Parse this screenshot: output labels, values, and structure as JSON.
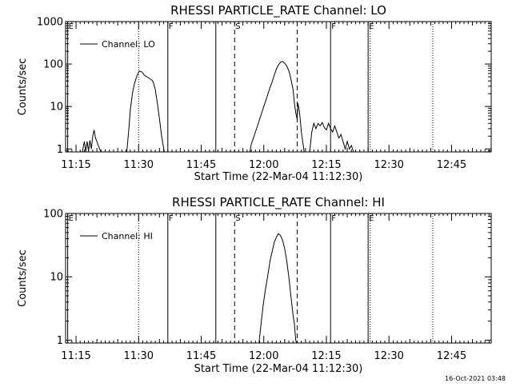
{
  "stamp": "16-Oct-2021 03:48",
  "chart_data": [
    {
      "type": "line",
      "title": "RHESSI PARTICLE_RATE Channel: LO",
      "xlabel": "Start Time (22-Mar-04 11:12:30)",
      "ylabel": "Counts/sec",
      "yscale": "log",
      "xlim": [
        "11:12:30",
        "12:54:30"
      ],
      "ylim": [
        0.85,
        1000
      ],
      "xticks": [
        "11:15",
        "11:30",
        "11:45",
        "12:00",
        "12:15",
        "12:30",
        "12:45"
      ],
      "yticks": [
        "1",
        "10",
        "100",
        "1000"
      ],
      "legend": {
        "label": "Channel: LO",
        "placement": "top-left"
      },
      "markers": [
        {
          "time": "11:13:00",
          "style": "solid",
          "label": "E"
        },
        {
          "time": "11:30:00",
          "style": "dotted",
          "label": ""
        },
        {
          "time": "11:37:00",
          "style": "solid",
          "label": "F"
        },
        {
          "time": "11:48:30",
          "style": "solid",
          "label": ""
        },
        {
          "time": "11:53:00",
          "style": "dashed",
          "label": "S"
        },
        {
          "time": "12:08:00",
          "style": "dashed",
          "label": ""
        },
        {
          "time": "12:16:00",
          "style": "solid",
          "label": "F"
        },
        {
          "time": "12:25:00",
          "style": "solid",
          "label": "E"
        },
        {
          "time": "12:25:30",
          "style": "dotted",
          "label": ""
        },
        {
          "time": "12:40:30",
          "style": "dotted",
          "label": ""
        }
      ],
      "segments": [
        [
          [
            "11:16:30",
            0.85
          ],
          [
            "11:17:00",
            1.5
          ],
          [
            "11:17:20",
            0.85
          ],
          [
            "11:17:40",
            1.5
          ],
          [
            "11:18:00",
            0.9
          ],
          [
            "11:18:20",
            1.6
          ],
          [
            "11:18:40",
            1.0
          ],
          [
            "11:19:00",
            2.0
          ],
          [
            "11:19:20",
            2.8
          ],
          [
            "11:19:40",
            1.8
          ],
          [
            "11:20:00",
            1.5
          ],
          [
            "11:20:20",
            1.2
          ],
          [
            "11:20:40",
            1.0
          ],
          [
            "11:21:00",
            0.85
          ]
        ],
        [
          [
            "11:27:10",
            0.85
          ],
          [
            "11:27:40",
            3.0
          ],
          [
            "11:28:00",
            8.0
          ],
          [
            "11:28:30",
            20
          ],
          [
            "11:29:00",
            35
          ],
          [
            "11:29:40",
            55
          ],
          [
            "11:30:10",
            68
          ],
          [
            "11:30:50",
            65
          ],
          [
            "11:31:20",
            55
          ],
          [
            "11:32:00",
            50
          ],
          [
            "11:32:40",
            45
          ],
          [
            "11:33:10",
            42
          ],
          [
            "11:33:30",
            38
          ],
          [
            "11:34:00",
            25
          ],
          [
            "11:34:30",
            12
          ],
          [
            "11:35:00",
            5
          ],
          [
            "11:35:30",
            2.0
          ],
          [
            "11:36:10",
            0.85
          ]
        ],
        [
          [
            "11:56:40",
            0.85
          ],
          [
            "11:57:00",
            1.3
          ],
          [
            "11:57:30",
            1.8
          ],
          [
            "11:58:00",
            2.5
          ],
          [
            "11:58:30",
            3.5
          ],
          [
            "11:59:00",
            5.0
          ],
          [
            "11:59:30",
            7.0
          ],
          [
            "12:00:00",
            10
          ],
          [
            "12:00:30",
            14
          ],
          [
            "12:01:00",
            20
          ],
          [
            "12:01:30",
            28
          ],
          [
            "12:02:00",
            38
          ],
          [
            "12:02:30",
            55
          ],
          [
            "12:03:00",
            75
          ],
          [
            "12:03:30",
            95
          ],
          [
            "12:04:00",
            110
          ],
          [
            "12:04:30",
            115
          ],
          [
            "12:05:00",
            105
          ],
          [
            "12:05:30",
            90
          ],
          [
            "12:06:00",
            70
          ],
          [
            "12:06:30",
            45
          ],
          [
            "12:07:00",
            25
          ],
          [
            "12:07:20",
            12
          ],
          [
            "12:07:40",
            7
          ],
          [
            "12:08:00",
            5
          ],
          [
            "12:08:10",
            12
          ],
          [
            "12:08:30",
            8
          ],
          [
            "12:08:50",
            4
          ],
          [
            "12:09:00",
            2.5
          ],
          [
            "12:09:20",
            1.5
          ],
          [
            "12:09:40",
            0.85
          ]
        ],
        [
          [
            "12:11:00",
            0.85
          ],
          [
            "12:11:30",
            2.5
          ],
          [
            "12:12:00",
            4.0
          ],
          [
            "12:12:30",
            3.0
          ],
          [
            "12:13:00",
            4.0
          ],
          [
            "12:13:30",
            3.5
          ],
          [
            "12:14:00",
            4.2
          ],
          [
            "12:14:30",
            3.2
          ],
          [
            "12:15:00",
            2.8
          ],
          [
            "12:15:30",
            4.0
          ],
          [
            "12:16:00",
            3.0
          ],
          [
            "12:16:30",
            2.5
          ],
          [
            "12:17:00",
            3.5
          ],
          [
            "12:17:30",
            2.5
          ],
          [
            "12:18:00",
            1.8
          ],
          [
            "12:18:30",
            2.2
          ],
          [
            "12:19:00",
            1.5
          ],
          [
            "12:19:30",
            1.0
          ],
          [
            "12:20:00",
            1.5
          ],
          [
            "12:20:30",
            1.0
          ],
          [
            "12:21:00",
            1.2
          ],
          [
            "12:21:30",
            0.85
          ]
        ]
      ]
    },
    {
      "type": "line",
      "title": "RHESSI PARTICLE_RATE Channel: HI",
      "xlabel": "Start Time (22-Mar-04 11:12:30)",
      "ylabel": "Counts/sec",
      "yscale": "log",
      "xlim": [
        "11:12:30",
        "12:54:30"
      ],
      "ylim": [
        0.9,
        100
      ],
      "xticks": [
        "11:15",
        "11:30",
        "11:45",
        "12:00",
        "12:15",
        "12:30",
        "12:45"
      ],
      "yticks": [
        "1",
        "10",
        "100"
      ],
      "legend": {
        "label": "Channel: HI",
        "placement": "top-left"
      },
      "markers": [
        {
          "time": "11:13:00",
          "style": "solid",
          "label": "E"
        },
        {
          "time": "11:30:00",
          "style": "dotted",
          "label": ""
        },
        {
          "time": "11:37:00",
          "style": "solid",
          "label": "F"
        },
        {
          "time": "11:48:30",
          "style": "solid",
          "label": ""
        },
        {
          "time": "11:53:00",
          "style": "dashed",
          "label": "S"
        },
        {
          "time": "12:08:00",
          "style": "dashed",
          "label": ""
        },
        {
          "time": "12:16:00",
          "style": "solid",
          "label": "F"
        },
        {
          "time": "12:25:00",
          "style": "solid",
          "label": "E"
        },
        {
          "time": "12:25:30",
          "style": "dotted",
          "label": ""
        },
        {
          "time": "12:40:30",
          "style": "dotted",
          "label": ""
        }
      ],
      "segments": [
        [
          [
            "11:58:50",
            0.9
          ],
          [
            "11:59:20",
            1.8
          ],
          [
            "11:59:50",
            3.5
          ],
          [
            "12:00:20",
            6
          ],
          [
            "12:01:00",
            11
          ],
          [
            "12:01:30",
            18
          ],
          [
            "12:02:00",
            25
          ],
          [
            "12:02:30",
            35
          ],
          [
            "12:03:00",
            42
          ],
          [
            "12:03:30",
            48
          ],
          [
            "12:04:00",
            45
          ],
          [
            "12:04:30",
            38
          ],
          [
            "12:05:00",
            28
          ],
          [
            "12:05:30",
            18
          ],
          [
            "12:06:00",
            10
          ],
          [
            "12:06:30",
            5
          ],
          [
            "12:07:00",
            2.5
          ],
          [
            "12:07:20",
            1.8
          ],
          [
            "12:07:40",
            1.0
          ],
          [
            "12:07:50",
            0.9
          ]
        ]
      ]
    }
  ]
}
